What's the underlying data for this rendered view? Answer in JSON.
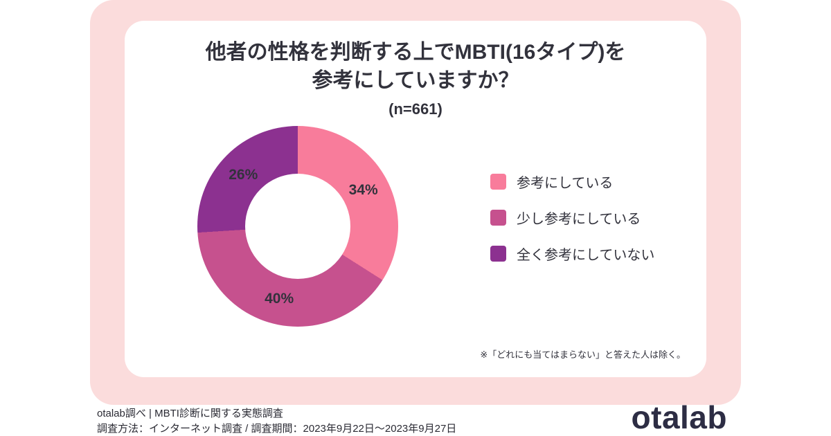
{
  "header": {
    "title_line1": "他者の性格を判断する上でMBTI(16タイプ)を",
    "title_line2": "参考にしていますか？",
    "sample_size": "(n=661)"
  },
  "card": {
    "note": "※「どれにも当てはまらない」と答えた人は除く。"
  },
  "footer": {
    "line1": "otalab調べ | MBTI診断に関する実態調査",
    "line2": "調査方法：インターネット調査 / 調査期間：2023年9月22日〜2023年9月27日",
    "logo": "otalab"
  },
  "colors": {
    "background": "#fbdcdc",
    "card": "#ffffff",
    "text": "#32323c",
    "logo": "#2d2d44"
  },
  "chart_data": {
    "type": "pie",
    "donut": true,
    "title": "他者の性格を判断する上でMBTI(16タイプ)を参考にしていますか？",
    "subtitle": "(n=661)",
    "categories": [
      "参考にしている",
      "少し参考にしている",
      "全く参考にしていない"
    ],
    "values": [
      34,
      40,
      26
    ],
    "unit": "%",
    "labels": [
      "34%",
      "40%",
      "26%"
    ],
    "colors": [
      "#f87c9b",
      "#c6518e",
      "#8c3190"
    ],
    "legend_position": "right",
    "start_angle_deg": 0,
    "direction": "clockwise",
    "note": "※「どれにも当てはまらない」と答えた人は除く。"
  }
}
